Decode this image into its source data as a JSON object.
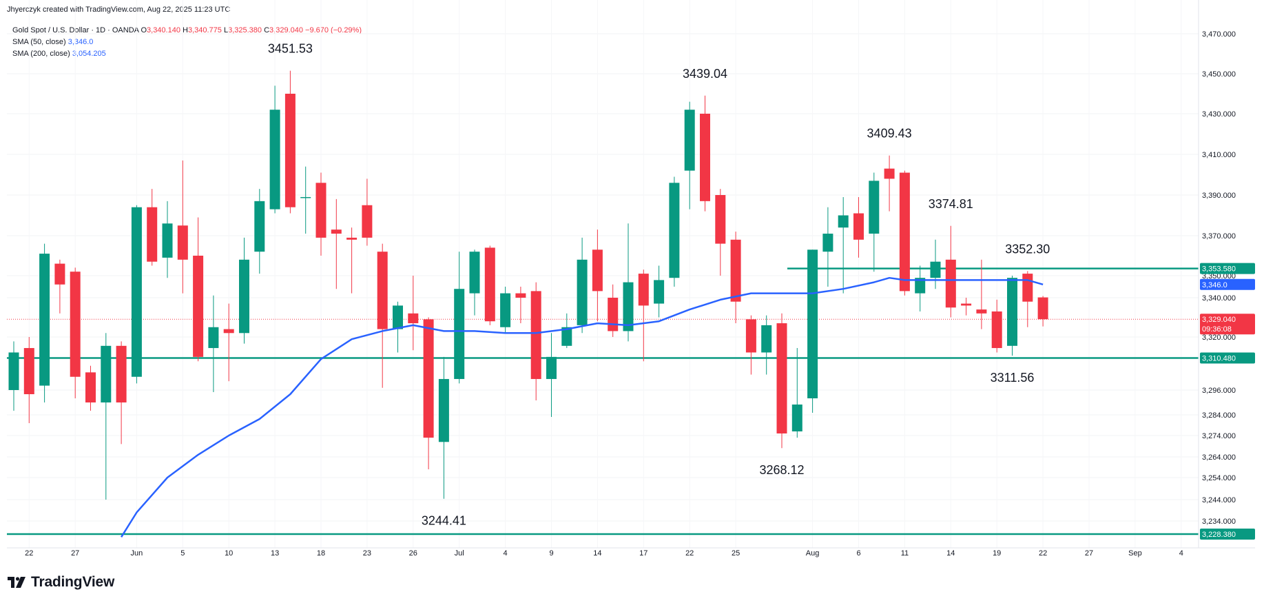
{
  "header": {
    "created_by": "Jhyerczyk created with TradingView.com, Aug 22, 2025 11:23 UTC"
  },
  "legend": {
    "symbol": "Gold Spot / U.S. Dollar · 1D · OANDA",
    "open_label": "O",
    "open": "3,340.140",
    "high_label": "H",
    "high": "3,340.775",
    "low_label": "L",
    "low": "3,325.380",
    "close_label": "C",
    "close": "3,329.040",
    "change": "−9.670 (−0.29%)",
    "sma50_label": "SMA (50, close)",
    "sma50_value": "3,346.0",
    "sma200_label": "SMA (200, close)",
    "sma200_value": "3,054.205"
  },
  "logo": {
    "text": "TradingView"
  },
  "colors": {
    "up": "#089981",
    "down": "#f23645",
    "sma": "#2962ff",
    "level": "#089981"
  },
  "chart_data": {
    "type": "candlestick",
    "title": "Gold Spot / U.S. Dollar · 1D · OANDA",
    "y_ticks": [
      3470,
      3450,
      3430,
      3410,
      3390,
      3370,
      3350,
      3340,
      3320,
      3296,
      3284,
      3274,
      3264,
      3254,
      3244,
      3234
    ],
    "x_ticks": [
      {
        "label": "22",
        "slot": 1
      },
      {
        "label": "27",
        "slot": 4
      },
      {
        "label": "Jun",
        "slot": 8
      },
      {
        "label": "5",
        "slot": 11
      },
      {
        "label": "10",
        "slot": 14
      },
      {
        "label": "13",
        "slot": 17
      },
      {
        "label": "18",
        "slot": 20
      },
      {
        "label": "23",
        "slot": 23
      },
      {
        "label": "26",
        "slot": 26
      },
      {
        "label": "Jul",
        "slot": 29
      },
      {
        "label": "4",
        "slot": 32
      },
      {
        "label": "9",
        "slot": 35
      },
      {
        "label": "14",
        "slot": 38
      },
      {
        "label": "17",
        "slot": 41
      },
      {
        "label": "22",
        "slot": 44
      },
      {
        "label": "25",
        "slot": 47
      },
      {
        "label": "Aug",
        "slot": 52
      },
      {
        "label": "6",
        "slot": 55
      },
      {
        "label": "11",
        "slot": 58
      },
      {
        "label": "14",
        "slot": 61
      },
      {
        "label": "19",
        "slot": 64
      },
      {
        "label": "22",
        "slot": 67
      },
      {
        "label": "27",
        "slot": 70
      },
      {
        "label": "Sep",
        "slot": 73
      },
      {
        "label": "4",
        "slot": 76
      }
    ],
    "candles": [
      {
        "slot": 0,
        "o": 3296,
        "h": 3318,
        "l": 3286,
        "c": 3313
      },
      {
        "slot": 1,
        "o": 3315,
        "h": 3320,
        "l": 3280,
        "c": 3294
      },
      {
        "slot": 2,
        "o": 3298,
        "h": 3366,
        "l": 3290,
        "c": 3361
      },
      {
        "slot": 3,
        "o": 3356,
        "h": 3358,
        "l": 3332,
        "c": 3346
      },
      {
        "slot": 4,
        "o": 3352,
        "h": 3354,
        "l": 3292,
        "c": 3302
      },
      {
        "slot": 5,
        "o": 3304,
        "h": 3307,
        "l": 3286,
        "c": 3290
      },
      {
        "slot": 6,
        "o": 3290,
        "h": 3322,
        "l": 3244,
        "c": 3316
      },
      {
        "slot": 7,
        "o": 3316,
        "h": 3318,
        "l": 3270,
        "c": 3290
      },
      {
        "slot": 8,
        "o": 3302,
        "h": 3385,
        "l": 3299,
        "c": 3384
      },
      {
        "slot": 9,
        "o": 3384,
        "h": 3393,
        "l": 3355,
        "c": 3357
      },
      {
        "slot": 10,
        "o": 3359,
        "h": 3387,
        "l": 3349,
        "c": 3376
      },
      {
        "slot": 11,
        "o": 3375,
        "h": 3407,
        "l": 3342,
        "c": 3358
      },
      {
        "slot": 12,
        "o": 3360,
        "h": 3379,
        "l": 3309,
        "c": 3311
      },
      {
        "slot": 13,
        "o": 3315,
        "h": 3341,
        "l": 3295,
        "c": 3325
      },
      {
        "slot": 14,
        "o": 3324,
        "h": 3337,
        "l": 3300,
        "c": 3322
      },
      {
        "slot": 15,
        "o": 3322,
        "h": 3369,
        "l": 3317,
        "c": 3358
      },
      {
        "slot": 16,
        "o": 3362,
        "h": 3393,
        "l": 3351,
        "c": 3387
      },
      {
        "slot": 17,
        "o": 3383,
        "h": 3444,
        "l": 3381,
        "c": 3432
      },
      {
        "slot": 18,
        "o": 3440,
        "h": 3451.53,
        "l": 3381,
        "c": 3384
      },
      {
        "slot": 19,
        "o": 3389,
        "h": 3404,
        "l": 3371,
        "c": 3389
      },
      {
        "slot": 20,
        "o": 3396,
        "h": 3401,
        "l": 3360,
        "c": 3369
      },
      {
        "slot": 21,
        "o": 3373,
        "h": 3388,
        "l": 3344,
        "c": 3371
      },
      {
        "slot": 22,
        "o": 3369,
        "h": 3374,
        "l": 3342,
        "c": 3368
      },
      {
        "slot": 23,
        "o": 3385,
        "h": 3398,
        "l": 3365,
        "c": 3369
      },
      {
        "slot": 24,
        "o": 3362,
        "h": 3366,
        "l": 3297,
        "c": 3324
      },
      {
        "slot": 25,
        "o": 3324,
        "h": 3338,
        "l": 3313,
        "c": 3336
      },
      {
        "slot": 26,
        "o": 3332,
        "h": 3350,
        "l": 3314,
        "c": 3327
      },
      {
        "slot": 27,
        "o": 3329,
        "h": 3330,
        "l": 3258,
        "c": 3273
      },
      {
        "slot": 28,
        "o": 3271,
        "h": 3311,
        "l": 3244.41,
        "c": 3301
      },
      {
        "slot": 29,
        "o": 3301,
        "h": 3362,
        "l": 3299,
        "c": 3344
      },
      {
        "slot": 30,
        "o": 3342,
        "h": 3363,
        "l": 3331,
        "c": 3362
      },
      {
        "slot": 31,
        "o": 3364,
        "h": 3365,
        "l": 3326,
        "c": 3328
      },
      {
        "slot": 32,
        "o": 3325,
        "h": 3345,
        "l": 3322,
        "c": 3342
      },
      {
        "slot": 33,
        "o": 3342,
        "h": 3345,
        "l": 3327,
        "c": 3340
      },
      {
        "slot": 34,
        "o": 3343,
        "h": 3347,
        "l": 3291,
        "c": 3301
      },
      {
        "slot": 35,
        "o": 3301,
        "h": 3322,
        "l": 3283,
        "c": 3311
      },
      {
        "slot": 36,
        "o": 3316,
        "h": 3332,
        "l": 3315,
        "c": 3325
      },
      {
        "slot": 37,
        "o": 3326,
        "h": 3369,
        "l": 3322,
        "c": 3358
      },
      {
        "slot": 38,
        "o": 3363,
        "h": 3373,
        "l": 3328,
        "c": 3343
      },
      {
        "slot": 39,
        "o": 3340,
        "h": 3346,
        "l": 3320,
        "c": 3323
      },
      {
        "slot": 40,
        "o": 3323,
        "h": 3376,
        "l": 3318,
        "c": 3347
      },
      {
        "slot": 41,
        "o": 3351,
        "h": 3353,
        "l": 3309,
        "c": 3336
      },
      {
        "slot": 42,
        "o": 3337,
        "h": 3355,
        "l": 3330,
        "c": 3348
      },
      {
        "slot": 43,
        "o": 3349,
        "h": 3399,
        "l": 3345,
        "c": 3396
      },
      {
        "slot": 44,
        "o": 3402,
        "h": 3436,
        "l": 3383,
        "c": 3432
      },
      {
        "slot": 45,
        "o": 3430,
        "h": 3439.04,
        "l": 3382,
        "c": 3387
      },
      {
        "slot": 46,
        "o": 3390,
        "h": 3393,
        "l": 3350,
        "c": 3366
      },
      {
        "slot": 47,
        "o": 3368,
        "h": 3372,
        "l": 3327,
        "c": 3338
      },
      {
        "slot": 48,
        "o": 3329,
        "h": 3331,
        "l": 3303,
        "c": 3313
      },
      {
        "slot": 49,
        "o": 3313,
        "h": 3331,
        "l": 3303,
        "c": 3326
      },
      {
        "slot": 50,
        "o": 3327,
        "h": 3332,
        "l": 3268.12,
        "c": 3275
      },
      {
        "slot": 51,
        "o": 3276,
        "h": 3315,
        "l": 3273,
        "c": 3289
      },
      {
        "slot": 52,
        "o": 3292,
        "h": 3363,
        "l": 3285,
        "c": 3363
      },
      {
        "slot": 53,
        "o": 3362,
        "h": 3384,
        "l": 3345,
        "c": 3371
      },
      {
        "slot": 54,
        "o": 3374,
        "h": 3389,
        "l": 3342,
        "c": 3380
      },
      {
        "slot": 55,
        "o": 3381,
        "h": 3389,
        "l": 3359,
        "c": 3368
      },
      {
        "slot": 56,
        "o": 3371,
        "h": 3401,
        "l": 3352,
        "c": 3397
      },
      {
        "slot": 57,
        "o": 3403,
        "h": 3409.43,
        "l": 3382,
        "c": 3398
      },
      {
        "slot": 58,
        "o": 3401,
        "h": 3402,
        "l": 3341,
        "c": 3343
      },
      {
        "slot": 59,
        "o": 3342,
        "h": 3355,
        "l": 3333,
        "c": 3349
      },
      {
        "slot": 60,
        "o": 3349,
        "h": 3368,
        "l": 3344,
        "c": 3357
      },
      {
        "slot": 61,
        "o": 3358,
        "h": 3374.81,
        "l": 3330,
        "c": 3335
      },
      {
        "slot": 62,
        "o": 3337,
        "h": 3340,
        "l": 3331,
        "c": 3336
      },
      {
        "slot": 63,
        "o": 3334,
        "h": 3358,
        "l": 3324,
        "c": 3332
      },
      {
        "slot": 64,
        "o": 3333,
        "h": 3339,
        "l": 3313,
        "c": 3315
      },
      {
        "slot": 65,
        "o": 3316,
        "h": 3350,
        "l": 3311.56,
        "c": 3349
      },
      {
        "slot": 66,
        "o": 3351,
        "h": 3352.3,
        "l": 3325,
        "c": 3338
      },
      {
        "slot": 67,
        "o": 3340.14,
        "h": 3340.775,
        "l": 3325.38,
        "c": 3329.04
      }
    ],
    "sma50": [
      {
        "slot": 7,
        "v": 3227
      },
      {
        "slot": 8,
        "v": 3238
      },
      {
        "slot": 10,
        "v": 3254
      },
      {
        "slot": 12,
        "v": 3265
      },
      {
        "slot": 14,
        "v": 3274
      },
      {
        "slot": 16,
        "v": 3282
      },
      {
        "slot": 18,
        "v": 3294
      },
      {
        "slot": 20,
        "v": 3310
      },
      {
        "slot": 22,
        "v": 3319
      },
      {
        "slot": 24,
        "v": 3323
      },
      {
        "slot": 26,
        "v": 3326
      },
      {
        "slot": 28,
        "v": 3323
      },
      {
        "slot": 30,
        "v": 3323
      },
      {
        "slot": 32,
        "v": 3322
      },
      {
        "slot": 34,
        "v": 3322
      },
      {
        "slot": 36,
        "v": 3324
      },
      {
        "slot": 38,
        "v": 3327
      },
      {
        "slot": 40,
        "v": 3326
      },
      {
        "slot": 42,
        "v": 3328
      },
      {
        "slot": 44,
        "v": 3334
      },
      {
        "slot": 46,
        "v": 3339
      },
      {
        "slot": 48,
        "v": 3342
      },
      {
        "slot": 50,
        "v": 3342
      },
      {
        "slot": 52,
        "v": 3342
      },
      {
        "slot": 54,
        "v": 3344
      },
      {
        "slot": 56,
        "v": 3347
      },
      {
        "slot": 57,
        "v": 3349
      },
      {
        "slot": 58,
        "v": 3348
      },
      {
        "slot": 60,
        "v": 3348
      },
      {
        "slot": 62,
        "v": 3348
      },
      {
        "slot": 64,
        "v": 3348
      },
      {
        "slot": 66,
        "v": 3348
      },
      {
        "slot": 67,
        "v": 3346
      }
    ],
    "levels": [
      {
        "value": 3353.58,
        "label": "3,353.580",
        "from_slot": 50
      },
      {
        "value": 3310.48,
        "label": "3,310.480",
        "from_slot": 0
      },
      {
        "value": 3228.38,
        "label": "3,228.380",
        "from_slot": 0
      }
    ],
    "price_tags": {
      "sma": {
        "value": 3346,
        "label": "3,346.0"
      },
      "last": {
        "value": 3329.04,
        "label": "3,329.040",
        "countdown": "09:36:08"
      }
    },
    "annotations": [
      {
        "text": "3451.53",
        "slot": 18,
        "value": 3451.53,
        "pos": "above"
      },
      {
        "text": "3439.04",
        "slot": 45,
        "value": 3439.04,
        "pos": "above"
      },
      {
        "text": "3409.43",
        "slot": 57,
        "value": 3409.43,
        "pos": "above"
      },
      {
        "text": "3374.81",
        "slot": 61,
        "value": 3374.81,
        "pos": "above"
      },
      {
        "text": "3352.30",
        "slot": 66,
        "value": 3352.3,
        "pos": "above"
      },
      {
        "text": "3311.56",
        "slot": 65,
        "value": 3311.56,
        "pos": "below"
      },
      {
        "text": "3268.12",
        "slot": 50,
        "value": 3268.12,
        "pos": "below"
      },
      {
        "text": "3244.41",
        "slot": 28,
        "value": 3244.41,
        "pos": "below"
      }
    ]
  }
}
